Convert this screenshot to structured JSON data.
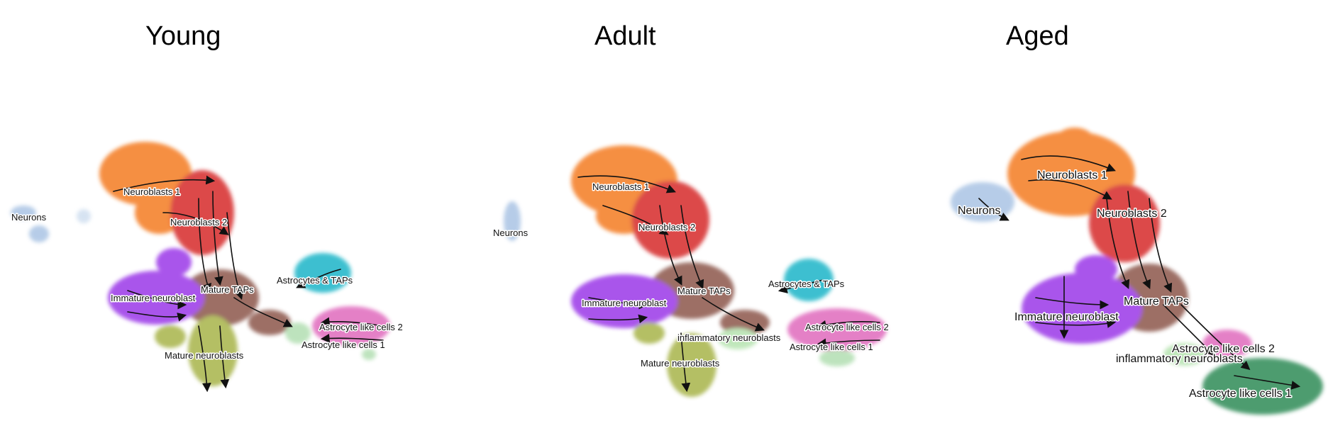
{
  "panels": [
    {
      "title": "Young",
      "labels": [
        "Neurons",
        "Neuroblasts 1",
        "Neuroblasts 2",
        "Astrocytes & TAPs",
        "Mature TAPs",
        "Immature neuroblast",
        "Astrocyte like cells 2",
        "Astrocyte like cells 1",
        "Mature neuroblasts"
      ]
    },
    {
      "title": "Adult",
      "labels": [
        "Neuroblasts 1",
        "Neurons",
        "Neuroblasts 2",
        "Astrocytes & TAPs",
        "Mature TAPs",
        "Immature neuroblast",
        "Astrocyte like cells 2",
        "inflammatory neuroblasts",
        "Astrocyte like cells 1",
        "Mature neuroblasts"
      ]
    },
    {
      "title": "Aged",
      "labels": [
        "Neuroblasts 1",
        "Neurons",
        "Neuroblasts 2",
        "Mature TAPs",
        "Immature neuroblast",
        "Astrocyte like cells 2",
        "inflammatory neuroblasts",
        "Astrocyte like cells 1"
      ]
    }
  ],
  "colors": {
    "neurons": "#aac4e4",
    "neuroblasts_1": "#f47b20",
    "neuroblasts_2": "#d62a2a",
    "mature_taps": "#8c564b",
    "immature_neuroblast": "#9b38e8",
    "mature_neuroblasts": "#a7b44a",
    "astrocytes_taps": "#1cb5c8",
    "astrocyte_like_2": "#e06bbd",
    "astrocyte_like_1_young": "#b2dfb2",
    "astrocyte_like_1_aged": "#2e8b57",
    "inflammatory_neuroblasts": "#b6e3b0"
  }
}
